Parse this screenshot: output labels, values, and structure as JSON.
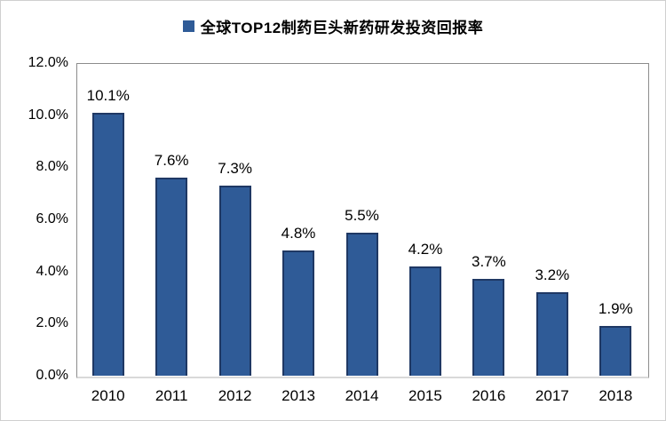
{
  "legend": {
    "label": "全球TOP12制药巨头新药研发投资回报率"
  },
  "colors": {
    "bar_fill": "#2F5B97",
    "bar_border": "#1F3864",
    "plot_border": "#8C8C8C",
    "axis_line": "#D9D9D9",
    "text": "#000000"
  },
  "chart_data": {
    "type": "bar",
    "title": "全球TOP12制药巨头新药研发投资回报率",
    "categories": [
      "2010",
      "2011",
      "2012",
      "2013",
      "2014",
      "2015",
      "2016",
      "2017",
      "2018"
    ],
    "values": [
      10.1,
      7.6,
      7.3,
      4.8,
      5.5,
      4.2,
      3.7,
      3.2,
      1.9
    ],
    "data_labels": [
      "10.1%",
      "7.6%",
      "7.3%",
      "4.8%",
      "5.5%",
      "4.2%",
      "3.7%",
      "3.2%",
      "1.9%"
    ],
    "y_tick_labels": [
      "12.0%",
      "10.0%",
      "8.0%",
      "6.0%",
      "4.0%",
      "2.0%",
      "0.0%"
    ],
    "xlabel": "",
    "ylabel": "",
    "ylim": [
      0,
      12
    ],
    "grid": false,
    "legend_position": "top"
  }
}
